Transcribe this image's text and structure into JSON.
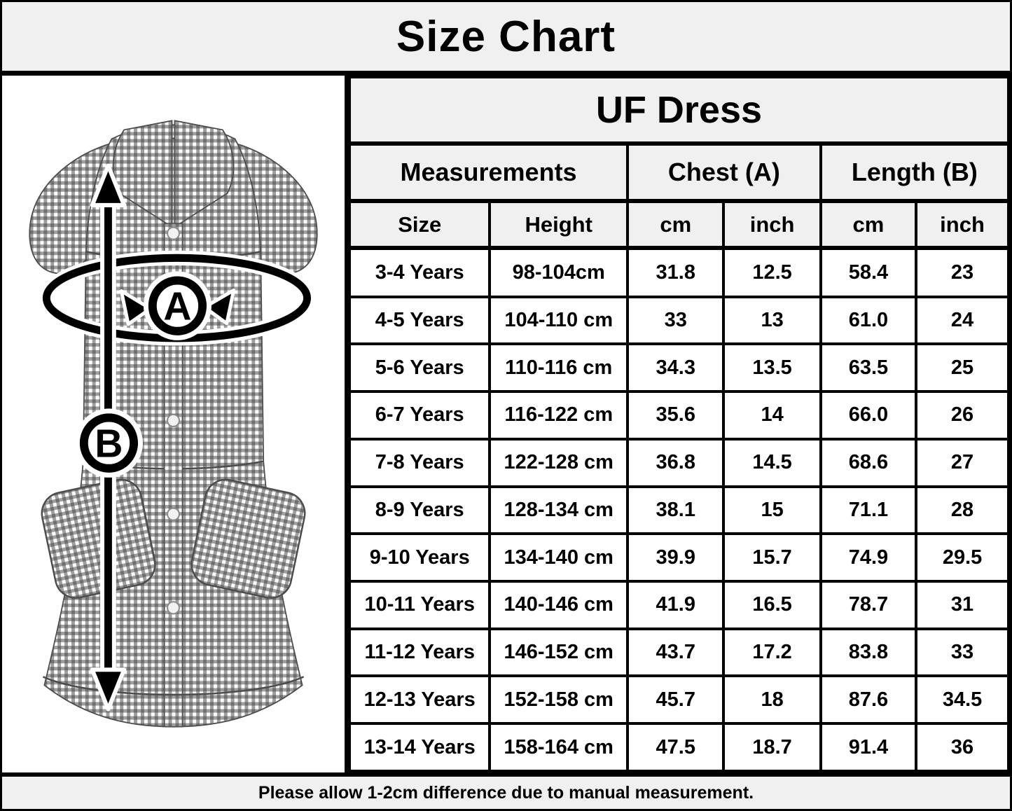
{
  "title": "Size Chart",
  "product": {
    "name": "UF Dress"
  },
  "diagram": {
    "chest_marker": "A",
    "length_marker": "B"
  },
  "table": {
    "group_headers": {
      "measurements": "Measurements",
      "chest": "Chest (A)",
      "length": "Length (B)"
    },
    "column_headers": {
      "size": "Size",
      "height": "Height",
      "chest_cm": "cm",
      "chest_inch": "inch",
      "length_cm": "cm",
      "length_inch": "inch"
    },
    "rows": [
      [
        "3-4 Years",
        "98-104cm",
        "31.8",
        "12.5",
        "58.4",
        "23"
      ],
      [
        "4-5 Years",
        "104-110 cm",
        "33",
        "13",
        "61.0",
        "24"
      ],
      [
        "5-6 Years",
        "110-116 cm",
        "34.3",
        "13.5",
        "63.5",
        "25"
      ],
      [
        "6-7 Years",
        "116-122 cm",
        "35.6",
        "14",
        "66.0",
        "26"
      ],
      [
        "7-8 Years",
        "122-128 cm",
        "36.8",
        "14.5",
        "68.6",
        "27"
      ],
      [
        "8-9 Years",
        "128-134 cm",
        "38.1",
        "15",
        "71.1",
        "28"
      ],
      [
        "9-10 Years",
        "134-140 cm",
        "39.9",
        "15.7",
        "74.9",
        "29.5"
      ],
      [
        "10-11 Years",
        "140-146 cm",
        "41.9",
        "16.5",
        "78.7",
        "31"
      ],
      [
        "11-12 Years",
        "146-152 cm",
        "43.7",
        "17.2",
        "83.8",
        "33"
      ],
      [
        "12-13 Years",
        "152-158 cm",
        "45.7",
        "18",
        "87.6",
        "34.5"
      ],
      [
        "13-14 Years",
        "158-164 cm",
        "47.5",
        "18.7",
        "91.4",
        "36"
      ]
    ]
  },
  "footer": {
    "note": "Please allow 1-2cm difference due to manual measurement."
  },
  "colors": {
    "panel_bg": "#f0f0f0",
    "cell_bg": "#ffffff",
    "border": "#000000",
    "text": "#000000",
    "gingham": "#404040"
  }
}
